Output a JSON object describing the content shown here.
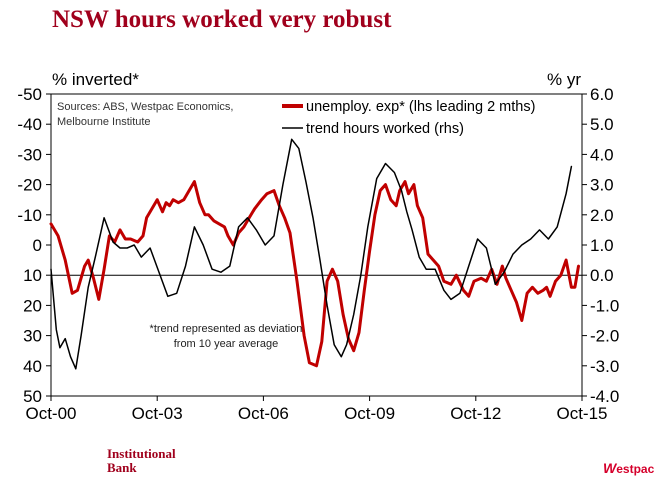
{
  "title": "NSW hours worked very robust",
  "footer": {
    "left_logo": [
      "Institutional",
      "Bank"
    ],
    "right_logo_mark": "W",
    "right_logo_text": "estpac"
  },
  "colors": {
    "title": "#a0001c",
    "series_unemploy": "#c00000",
    "series_hours": "#000000"
  },
  "chart_data": {
    "type": "line",
    "title": "NSW hours worked very robust",
    "left_axis_label": "% inverted*",
    "right_axis_label": "% yr",
    "left_ticks": [
      "-50",
      "-40",
      "-30",
      "-20",
      "-10",
      "0",
      "10",
      "20",
      "30",
      "40",
      "50"
    ],
    "right_ticks": [
      "6.0",
      "5.0",
      "4.0",
      "3.0",
      "2.0",
      "1.0",
      "0.0",
      "-1.0",
      "-2.0",
      "-3.0",
      "-4.0"
    ],
    "left_axis": {
      "inverted": true,
      "range": [
        -50,
        50
      ]
    },
    "right_axis": {
      "range": [
        -4,
        6
      ]
    },
    "x_ticks": [
      "Oct-00",
      "Oct-03",
      "Oct-06",
      "Oct-09",
      "Oct-12",
      "Oct-15"
    ],
    "x_range": [
      2000.75,
      2015.75
    ],
    "source_note": [
      "Sources: ABS, Westpac Economics,",
      "Melbourne Institute"
    ],
    "footnote": [
      "*trend represented as deviation",
      "from 10 year average"
    ],
    "legend_position": "top-right",
    "series": [
      {
        "name": "unemploy. exp* (lhs leading 2 mths)",
        "axis": "left",
        "x": [
          2000.75,
          2000.95,
          2001.15,
          2001.35,
          2001.5,
          2001.7,
          2001.8,
          2001.95,
          2002.1,
          2002.25,
          2002.4,
          2002.55,
          2002.7,
          2002.85,
          2003.0,
          2003.2,
          2003.35,
          2003.45,
          2003.6,
          2003.75,
          2003.9,
          2004.0,
          2004.1,
          2004.2,
          2004.35,
          2004.5,
          2004.65,
          2004.8,
          2004.95,
          2005.1,
          2005.2,
          2005.35,
          2005.5,
          2005.65,
          2005.75,
          2005.9,
          2006.05,
          2006.2,
          2006.35,
          2006.5,
          2006.7,
          2006.85,
          2007.05,
          2007.2,
          2007.35,
          2007.5,
          2007.7,
          2007.9,
          2008.05,
          2008.25,
          2008.4,
          2008.55,
          2008.7,
          2008.85,
          2009.0,
          2009.15,
          2009.3,
          2009.45,
          2009.6,
          2009.75,
          2009.9,
          2010.05,
          2010.2,
          2010.35,
          2010.5,
          2010.6,
          2010.75,
          2010.85,
          2011.0,
          2011.1,
          2011.25,
          2011.4,
          2011.55,
          2011.7,
          2011.85,
          2012.05,
          2012.2,
          2012.4,
          2012.55,
          2012.7,
          2012.9,
          2013.05,
          2013.2,
          2013.35,
          2013.5,
          2013.6,
          2013.75,
          2013.9,
          2014.05,
          2014.2,
          2014.35,
          2014.5,
          2014.65,
          2014.75,
          2014.85,
          2015.0,
          2015.15,
          2015.3,
          2015.45,
          2015.55,
          2015.65
        ],
        "y": [
          -7,
          -3,
          5,
          16,
          15,
          7,
          5,
          11,
          18,
          8,
          -3,
          -1,
          -5,
          -2,
          -2,
          -1,
          -3,
          -9,
          -12,
          -15,
          -11,
          -14,
          -13,
          -15,
          -14,
          -15,
          -18,
          -21,
          -14,
          -10,
          -10,
          -8,
          -7,
          -6,
          -3,
          0,
          -4,
          -6,
          -9,
          -12,
          -15,
          -17,
          -18,
          -13,
          -9,
          -4,
          12,
          30,
          39,
          40,
          32,
          12,
          8,
          12,
          23,
          31,
          35,
          29,
          15,
          2,
          -10,
          -18,
          -20,
          -15,
          -13,
          -18,
          -21,
          -17,
          -20,
          -13,
          -9,
          3,
          5,
          7,
          12,
          13,
          10,
          15,
          17,
          12,
          11,
          12,
          8,
          13,
          7,
          11,
          15,
          19,
          25,
          16,
          14,
          16,
          15,
          14,
          17,
          12,
          10,
          5,
          14,
          14,
          7
        ]
      },
      {
        "name": "trend hours worked (rhs)",
        "axis": "right",
        "x": [
          2000.75,
          2000.9,
          2001.0,
          2001.15,
          2001.3,
          2001.45,
          2001.6,
          2001.8,
          2002.0,
          2002.25,
          2002.5,
          2002.7,
          2002.9,
          2003.1,
          2003.3,
          2003.55,
          2003.8,
          2004.05,
          2004.3,
          2004.55,
          2004.8,
          2005.05,
          2005.3,
          2005.55,
          2005.8,
          2006.05,
          2006.3,
          2006.55,
          2006.8,
          2007.05,
          2007.3,
          2007.55,
          2007.75,
          2007.95,
          2008.15,
          2008.35,
          2008.55,
          2008.75,
          2008.95,
          2009.1,
          2009.3,
          2009.5,
          2009.7,
          2009.95,
          2010.2,
          2010.45,
          2010.65,
          2010.8,
          2010.95,
          2011.15,
          2011.35,
          2011.6,
          2011.85,
          2012.05,
          2012.3,
          2012.55,
          2012.8,
          2013.05,
          2013.3,
          2013.55,
          2013.8,
          2014.05,
          2014.3,
          2014.55,
          2014.8,
          2015.05,
          2015.3,
          2015.45
        ],
        "y": [
          0.2,
          -1.8,
          -2.4,
          -2.1,
          -2.7,
          -3.1,
          -2.0,
          -0.4,
          0.6,
          1.9,
          1.1,
          0.9,
          0.9,
          1.0,
          0.6,
          0.9,
          0.1,
          -0.7,
          -0.6,
          0.3,
          1.6,
          1.0,
          0.2,
          0.1,
          0.3,
          1.6,
          1.9,
          1.5,
          1.0,
          1.3,
          3.0,
          4.5,
          4.2,
          3.1,
          1.9,
          0.5,
          -1.0,
          -2.3,
          -2.7,
          -2.3,
          -1.3,
          0.0,
          1.6,
          3.2,
          3.7,
          3.4,
          2.8,
          2.1,
          1.5,
          0.6,
          0.2,
          0.2,
          -0.5,
          -0.8,
          -0.6,
          0.3,
          1.2,
          0.9,
          -0.3,
          0.1,
          0.7,
          1.0,
          1.2,
          1.5,
          1.2,
          1.6,
          2.7,
          3.6
        ]
      }
    ]
  }
}
